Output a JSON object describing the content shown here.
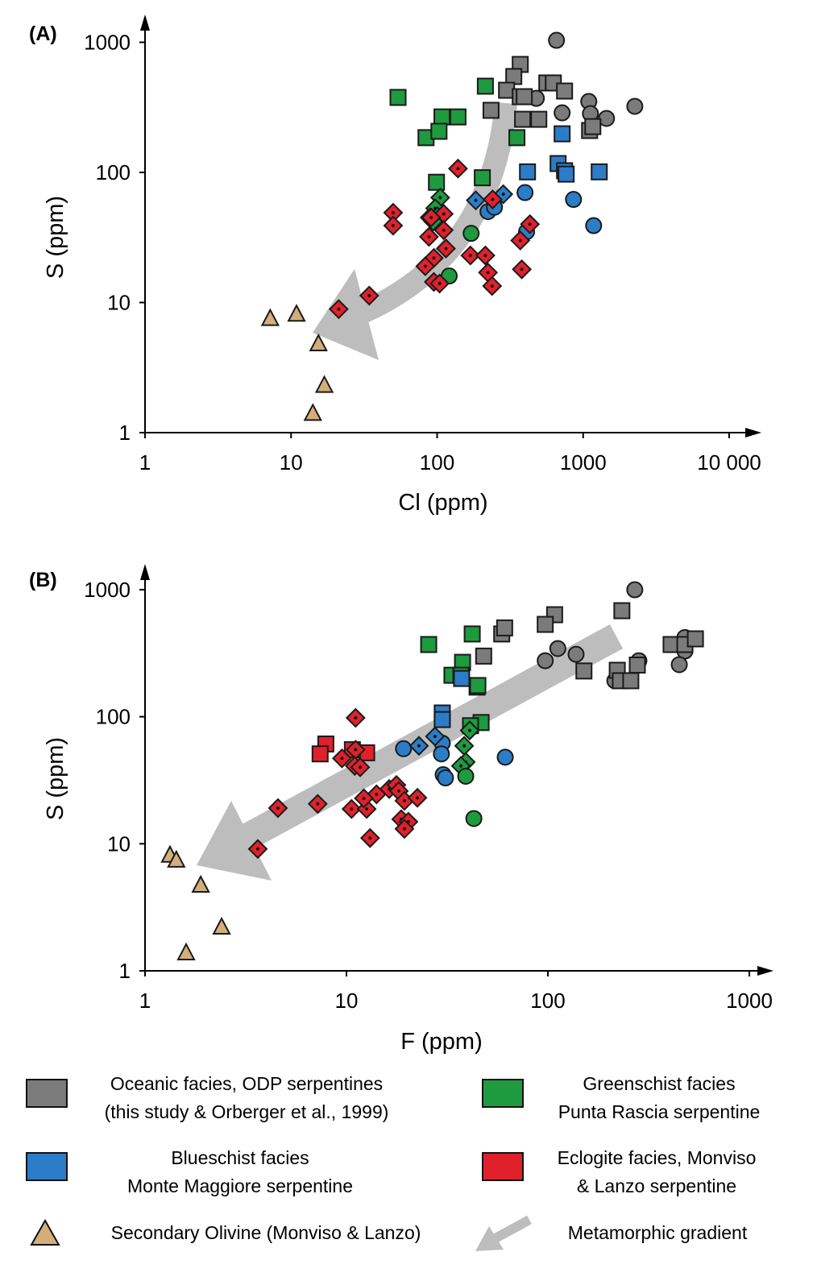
{
  "colors": {
    "oceanic": "#7b7b7b",
    "greenschist": "#1e9a3f",
    "blueschist": "#2b7dc8",
    "eclogite": "#e0212b",
    "olivine": "#d4ae7a",
    "gradient": "#bdbdbd"
  },
  "legend": {
    "oceanic": {
      "line1": "Oceanic facies, ODP serpentines",
      "line2": "(this study & Orberger et al., 1999)"
    },
    "greenschist": {
      "line1": "Greenschist facies",
      "line2": "Punta Rascia serpentine"
    },
    "blueschist": {
      "line1": "Blueschist facies",
      "line2": "Monte Maggiore serpentine"
    },
    "eclogite": {
      "line1": "Eclogite facies, Monviso",
      "line2": "& Lanzo serpentine"
    },
    "olivine": {
      "line1": "Secondary Olivine (Monviso & Lanzo)"
    },
    "gradient": {
      "line1": "Metamorphic gradient"
    }
  },
  "chart_data": [
    {
      "panel": "(A)",
      "type": "scatter",
      "xlabel": "Cl (ppm)",
      "ylabel": "S (ppm)",
      "xscale": "log",
      "yscale": "log",
      "xlim": [
        1,
        10000
      ],
      "ylim": [
        1,
        1000
      ],
      "xticks": [
        {
          "v": 1,
          "label": "1"
        },
        {
          "v": 10,
          "label": "10"
        },
        {
          "v": 100,
          "label": "100"
        },
        {
          "v": 1000,
          "label": "1000"
        },
        {
          "v": 10000,
          "label": "10 000"
        }
      ],
      "yticks": [
        {
          "v": 1,
          "label": "1"
        },
        {
          "v": 10,
          "label": "10"
        },
        {
          "v": 100,
          "label": "100"
        },
        {
          "v": 1000,
          "label": "1000"
        }
      ],
      "grid": false,
      "arrow": "curved, from upper right (~Cl 350, S 300) to lower left (~Cl 13, S 6)",
      "series": [
        {
          "group": "oceanic",
          "marker": "circle",
          "points": [
            [
              657,
              1036
            ],
            [
              478,
              371
            ],
            [
              718,
              287
            ],
            [
              1093,
              351
            ],
            [
              1122,
              283
            ],
            [
              1445,
              260
            ],
            [
              2258,
              322
            ]
          ]
        },
        {
          "group": "oceanic",
          "marker": "square",
          "points": [
            [
              371,
              676
            ],
            [
              335,
              546
            ],
            [
              299,
              428
            ],
            [
              371,
              382
            ],
            [
              385,
              256
            ],
            [
              497,
              256
            ],
            [
              564,
              487
            ],
            [
              625,
              487
            ],
            [
              746,
              422
            ],
            [
              1107,
              210
            ],
            [
              1165,
              225
            ],
            [
              234,
              300
            ],
            [
              395,
              382
            ]
          ]
        },
        {
          "group": "greenschist",
          "marker": "square",
          "points": [
            [
              54,
              377
            ],
            [
              84,
              185
            ],
            [
              108,
              267
            ],
            [
              103,
              207
            ],
            [
              139,
              267
            ],
            [
              214,
              460
            ],
            [
              352,
              185
            ],
            [
              99,
              84
            ],
            [
              204,
              91
            ]
          ]
        },
        {
          "group": "greenschist",
          "marker": "diamond",
          "points": [
            [
              105,
              64
            ],
            [
              97,
              53
            ],
            [
              101,
              46
            ],
            [
              94,
              42
            ]
          ]
        },
        {
          "group": "greenschist",
          "marker": "circle",
          "points": [
            [
              171,
              34
            ],
            [
              121,
              16
            ]
          ]
        },
        {
          "group": "blueschist",
          "marker": "square",
          "points": [
            [
              718,
              198
            ],
            [
              416,
              101
            ],
            [
              674,
              117
            ],
            [
              746,
              103
            ],
            [
              765,
              97
            ],
            [
              1289,
              101
            ]
          ]
        },
        {
          "group": "blueschist",
          "marker": "circle",
          "points": [
            [
              400,
              70
            ],
            [
              859,
              62
            ],
            [
              1180,
              39
            ],
            [
              410,
              35
            ],
            [
              223,
              50
            ],
            [
              247,
              54
            ]
          ]
        },
        {
          "group": "blueschist",
          "marker": "diamond",
          "points": [
            [
              184,
              61
            ],
            [
              284,
              68
            ]
          ]
        },
        {
          "group": "eclogite",
          "marker": "diamond",
          "points": [
            [
              50,
              49
            ],
            [
              50,
              39
            ],
            [
              139,
              107
            ],
            [
              111,
              48
            ],
            [
              89,
              45
            ],
            [
              88,
              32
            ],
            [
              111,
              36
            ],
            [
              115,
              26
            ],
            [
              95,
              22
            ],
            [
              83,
              19
            ],
            [
              95,
              14.4
            ],
            [
              104,
              14
            ],
            [
              169,
              23
            ],
            [
              214,
              23
            ],
            [
              223,
              17
            ],
            [
              238,
              13.4
            ],
            [
              432,
              40
            ],
            [
              371,
              30
            ],
            [
              380,
              18
            ],
            [
              34.3,
              11.3
            ],
            [
              21.2,
              8.9
            ],
            [
              240,
              62
            ],
            [
              91,
              45
            ]
          ]
        },
        {
          "group": "olivine",
          "marker": "triangle",
          "points": [
            [
              7.2,
              7.5
            ],
            [
              10.9,
              8.1
            ],
            [
              15.4,
              4.8
            ],
            [
              16.9,
              2.3
            ],
            [
              14.1,
              1.4
            ]
          ]
        }
      ]
    },
    {
      "panel": "(B)",
      "type": "scatter",
      "xlabel": "F (ppm)",
      "ylabel": "S (ppm)",
      "xscale": "log",
      "yscale": "log",
      "xlim": [
        1,
        1000
      ],
      "ylim": [
        1,
        1000
      ],
      "xticks": [
        {
          "v": 1,
          "label": "1"
        },
        {
          "v": 10,
          "label": "10"
        },
        {
          "v": 100,
          "label": "100"
        },
        {
          "v": 1000,
          "label": "1000"
        }
      ],
      "yticks": [
        {
          "v": 1,
          "label": "1"
        },
        {
          "v": 10,
          "label": "10"
        },
        {
          "v": 100,
          "label": "100"
        },
        {
          "v": 1000,
          "label": "1000"
        }
      ],
      "grid": false,
      "arrow": "straight, from upper right (~F 220, S 400) to lower left (~F 1.8, S 6)",
      "series": [
        {
          "group": "oceanic",
          "marker": "circle",
          "points": [
            [
              270,
              998
            ],
            [
              97,
              276
            ],
            [
              112,
              344
            ],
            [
              138,
              310
            ],
            [
              215,
              192
            ],
            [
              283,
              276
            ],
            [
              449,
              370
            ],
            [
              479,
              329
            ],
            [
              449,
              257
            ],
            [
              479,
              420
            ]
          ]
        },
        {
          "group": "oceanic",
          "marker": "square",
          "points": [
            [
              108,
              635
            ],
            [
              97,
              533
            ],
            [
              233,
              683
            ],
            [
              59,
              448
            ],
            [
              61,
              500
            ],
            [
              48,
              300
            ],
            [
              151,
              229
            ],
            [
              221,
              232
            ],
            [
              229,
              192
            ],
            [
              258,
              192
            ],
            [
              278,
              255
            ],
            [
              409,
              370
            ],
            [
              479,
              370
            ],
            [
              540,
              410
            ]
          ]
        },
        {
          "group": "greenschist",
          "marker": "square",
          "points": [
            [
              25.6,
              370
            ],
            [
              42.1,
              448
            ],
            [
              37.7,
              268
            ],
            [
              33.4,
              212
            ],
            [
              37,
              212
            ],
            [
              44.5,
              171
            ],
            [
              44.9,
              176
            ],
            [
              46.6,
              90
            ],
            [
              41.3,
              85
            ]
          ]
        },
        {
          "group": "greenschist",
          "marker": "diamond",
          "points": [
            [
              40.9,
              78
            ],
            [
              38.4,
              59
            ],
            [
              39.1,
              44
            ],
            [
              37,
              41
            ]
          ]
        },
        {
          "group": "greenschist",
          "marker": "circle",
          "points": [
            [
              39.1,
              34
            ],
            [
              42.9,
              15.8
            ]
          ]
        },
        {
          "group": "blueschist",
          "marker": "square",
          "points": [
            [
              37.3,
              200
            ],
            [
              29.9,
              107
            ],
            [
              29.9,
              95
            ]
          ]
        },
        {
          "group": "blueschist",
          "marker": "circle",
          "points": [
            [
              19.2,
              56
            ],
            [
              29.9,
              62
            ],
            [
              29.6,
              51
            ],
            [
              30.2,
              35
            ],
            [
              31,
              33
            ],
            [
              61.4,
              48
            ]
          ]
        },
        {
          "group": "blueschist",
          "marker": "diamond",
          "points": [
            [
              22.9,
              59
            ],
            [
              27.5,
              70
            ]
          ]
        },
        {
          "group": "eclogite",
          "marker": "square",
          "points": [
            [
              7.9,
              61
            ],
            [
              7.4,
              51
            ],
            [
              12.6,
              52
            ],
            [
              10.7,
              55
            ]
          ]
        },
        {
          "group": "eclogite",
          "marker": "diamond",
          "points": [
            [
              11.1,
              98
            ],
            [
              11.1,
              55
            ],
            [
              9.5,
              47
            ],
            [
              11,
              41
            ],
            [
              11.7,
              40
            ],
            [
              4.57,
              19.1
            ],
            [
              7.2,
              20.6
            ],
            [
              10.6,
              18.8
            ],
            [
              12.6,
              18.8
            ],
            [
              14.1,
              24.5
            ],
            [
              16.3,
              27
            ],
            [
              17.7,
              29
            ],
            [
              18.2,
              26
            ],
            [
              19.4,
              21.8
            ],
            [
              22.5,
              23
            ],
            [
              18.7,
              15.6
            ],
            [
              20.3,
              14.9
            ],
            [
              19.4,
              13.1
            ],
            [
              13.1,
              11.1
            ],
            [
              3.63,
              9.1
            ],
            [
              12.2,
              22.8
            ]
          ]
        },
        {
          "group": "olivine",
          "marker": "triangle",
          "points": [
            [
              1.33,
              8.1
            ],
            [
              1.43,
              7.4
            ],
            [
              1.89,
              4.7
            ],
            [
              2.4,
              2.2
            ],
            [
              1.6,
              1.38
            ]
          ]
        }
      ]
    }
  ]
}
